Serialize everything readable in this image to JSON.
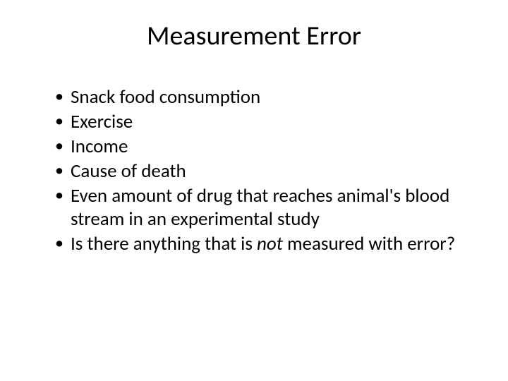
{
  "slide": {
    "title": "Measurement Error",
    "bullets": [
      "Snack food consumption",
      "Exercise",
      "Income",
      "Cause of death",
      "Even amount of drug that reaches animal's blood stream in an experimental study"
    ],
    "last_bullet": {
      "prefix": "Is there anything that is ",
      "italic": "not",
      "suffix": " measured with error?"
    }
  },
  "styles": {
    "background_color": "#ffffff",
    "text_color": "#000000",
    "title_fontsize": 38,
    "bullet_fontsize": 27
  }
}
